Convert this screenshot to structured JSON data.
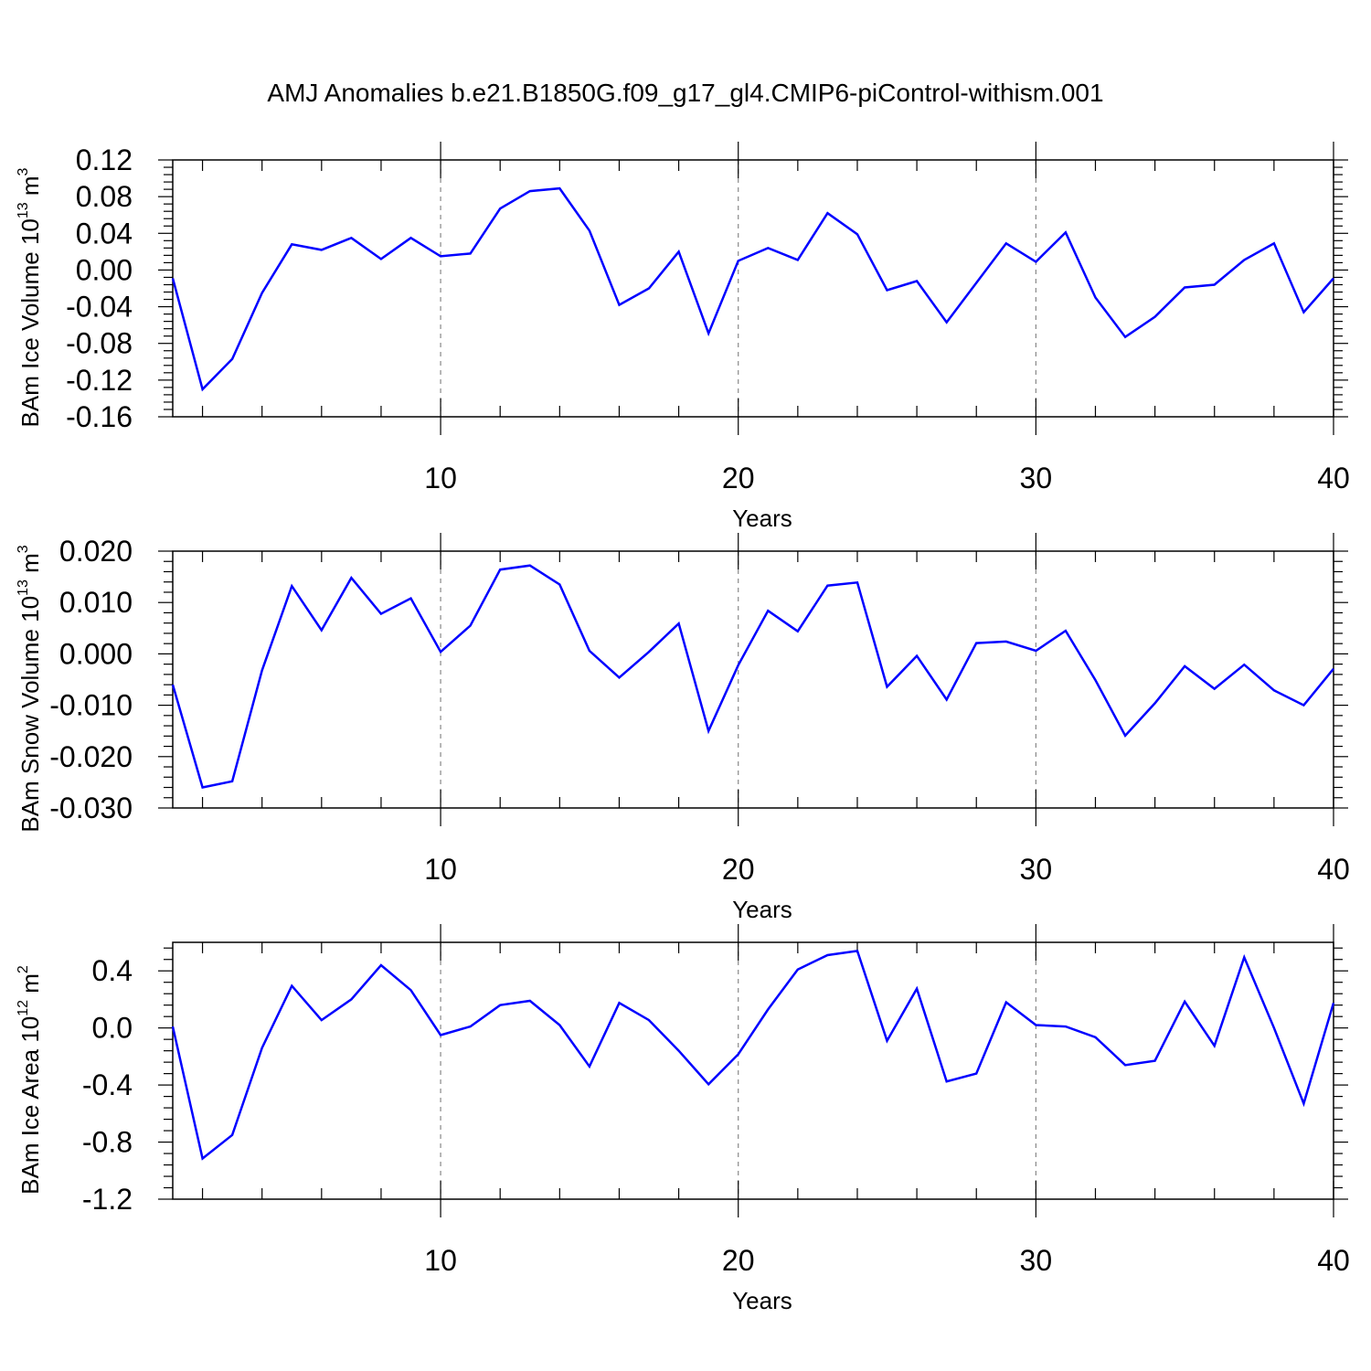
{
  "title": "AMJ Anomalies b.e21.B1850G.f09_g17_gl4.CMIP6-piControl-withism.001",
  "colors": {
    "line": "#0000ff",
    "axis": "#000000",
    "grid": "#888888"
  },
  "chart_data": [
    {
      "type": "line",
      "ylabel_main": "BAm Ice Volume 10",
      "ylabel_exp": "13",
      "ylabel_unit": " m",
      "ylabel_unit_exp": "3",
      "xlabel": "Years",
      "xlim": [
        1,
        40
      ],
      "ylim": [
        -0.16,
        0.12
      ],
      "xticks": [
        10,
        20,
        30,
        40
      ],
      "xtick_labels": [
        "10",
        "20",
        "30",
        "40"
      ],
      "yticks": [
        -0.16,
        -0.12,
        -0.08,
        -0.04,
        0.0,
        0.04,
        0.08,
        0.12
      ],
      "ytick_labels": [
        "-0.16",
        "-0.12",
        "-0.08",
        "-0.04",
        "0.00",
        "0.04",
        "0.08",
        "0.12"
      ],
      "grid_x": [
        10,
        20,
        30
      ],
      "x": [
        1,
        2,
        3,
        4,
        5,
        6,
        7,
        8,
        9,
        10,
        11,
        12,
        13,
        14,
        15,
        16,
        17,
        18,
        19,
        20,
        21,
        22,
        23,
        24,
        25,
        26,
        27,
        28,
        29,
        30,
        31,
        32,
        33,
        34,
        35,
        36,
        37,
        38,
        39,
        40
      ],
      "values": [
        -0.009,
        -0.13,
        -0.097,
        -0.025,
        0.028,
        0.022,
        0.035,
        0.012,
        0.035,
        0.015,
        0.018,
        0.067,
        0.086,
        0.089,
        0.043,
        -0.038,
        -0.02,
        0.02,
        -0.069,
        0.01,
        0.024,
        0.011,
        0.062,
        0.039,
        -0.022,
        -0.012,
        -0.057,
        -0.014,
        0.029,
        0.009,
        0.041,
        -0.03,
        -0.073,
        -0.051,
        -0.019,
        -0.016,
        0.011,
        0.029,
        -0.046,
        -0.009
      ]
    },
    {
      "type": "line",
      "ylabel_main": "BAm Snow Volume 10",
      "ylabel_exp": "13",
      "ylabel_unit": " m",
      "ylabel_unit_exp": "3",
      "xlabel": "Years",
      "xlim": [
        1,
        40
      ],
      "ylim": [
        -0.03,
        0.02
      ],
      "xticks": [
        10,
        20,
        30,
        40
      ],
      "xtick_labels": [
        "10",
        "20",
        "30",
        "40"
      ],
      "yticks": [
        -0.03,
        -0.02,
        -0.01,
        0.0,
        0.01,
        0.02
      ],
      "ytick_labels": [
        "-0.030",
        "-0.020",
        "-0.010",
        "0.000",
        "0.010",
        "0.020"
      ],
      "grid_x": [
        10,
        20,
        30
      ],
      "x": [
        1,
        2,
        3,
        4,
        5,
        6,
        7,
        8,
        9,
        10,
        11,
        12,
        13,
        14,
        15,
        16,
        17,
        18,
        19,
        20,
        21,
        22,
        23,
        24,
        25,
        26,
        27,
        28,
        29,
        30,
        31,
        32,
        33,
        34,
        35,
        36,
        37,
        38,
        39,
        40
      ],
      "values": [
        -0.006,
        -0.026,
        -0.0248,
        -0.0032,
        0.0132,
        0.0046,
        0.0148,
        0.0078,
        0.0108,
        0.0004,
        0.0055,
        0.0164,
        0.0172,
        0.0135,
        0.0006,
        -0.0046,
        0.0004,
        0.0059,
        -0.015,
        -0.0022,
        0.0084,
        0.0044,
        0.0133,
        0.0139,
        -0.0064,
        -0.0004,
        -0.0089,
        0.0021,
        0.0024,
        0.0006,
        0.0045,
        -0.0051,
        -0.0159,
        -0.0096,
        -0.0024,
        -0.0068,
        -0.0021,
        -0.0071,
        -0.01,
        -0.0029
      ]
    },
    {
      "type": "line",
      "ylabel_main": "BAm Ice Area 10",
      "ylabel_exp": "12",
      "ylabel_unit": " m",
      "ylabel_unit_exp": "2",
      "xlabel": "Years",
      "xlim": [
        1,
        40
      ],
      "ylim": [
        -1.2,
        0.6
      ],
      "xticks": [
        10,
        20,
        30,
        40
      ],
      "xtick_labels": [
        "10",
        "20",
        "30",
        "40"
      ],
      "yticks": [
        -1.2,
        -0.8,
        -0.4,
        0.0,
        0.4
      ],
      "ytick_labels": [
        "-1.2",
        "-0.8",
        "-0.4",
        "0.0",
        "0.4"
      ],
      "grid_x": [
        10,
        20,
        30
      ],
      "x": [
        1,
        2,
        3,
        4,
        5,
        6,
        7,
        8,
        9,
        10,
        11,
        12,
        13,
        14,
        15,
        16,
        17,
        18,
        19,
        20,
        21,
        22,
        23,
        24,
        25,
        26,
        27,
        28,
        29,
        30,
        31,
        32,
        33,
        34,
        35,
        36,
        37,
        38,
        39,
        40
      ],
      "values": [
        0.01,
        -0.915,
        -0.75,
        -0.14,
        0.295,
        0.055,
        0.2,
        0.44,
        0.265,
        -0.05,
        0.01,
        0.16,
        0.19,
        0.02,
        -0.27,
        0.175,
        0.055,
        -0.16,
        -0.395,
        -0.185,
        0.13,
        0.41,
        0.51,
        0.54,
        -0.09,
        0.275,
        -0.375,
        -0.32,
        0.18,
        0.02,
        0.01,
        -0.065,
        -0.26,
        -0.23,
        0.185,
        -0.125,
        0.495,
        0.0,
        -0.53,
        0.175
      ]
    }
  ]
}
